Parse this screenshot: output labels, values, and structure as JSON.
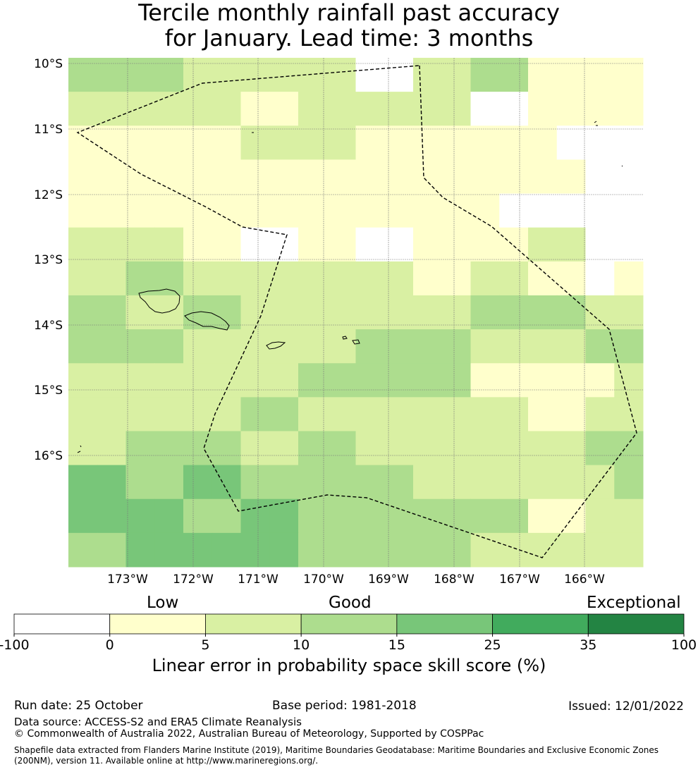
{
  "title": {
    "line1": "Tercile monthly rainfall past accuracy",
    "line2": "for January. Lead time: 3 months"
  },
  "map": {
    "lat_labels": [
      "10°S",
      "11°S",
      "12°S",
      "13°S",
      "14°S",
      "15°S",
      "16°S"
    ],
    "lon_labels": [
      "173°W",
      "172°W",
      "171°W",
      "170°W",
      "169°W",
      "168°W",
      "167°W",
      "166°W"
    ],
    "colors": {
      "none": "#ffffff",
      "c0": "#ffffcc",
      "c1": "#d9f0a3",
      "c2": "#addd8e",
      "c3": "#78c679",
      "c4": "#41ab5d",
      "c5": "#238443"
    },
    "grid": [
      [
        2,
        2,
        2,
        2,
        1,
        1,
        1,
        1,
        1,
        1,
        -1,
        -1,
        1,
        1,
        2,
        2,
        0,
        0,
        0,
        0
      ],
      [
        1,
        1,
        1,
        1,
        1,
        1,
        0,
        0,
        1,
        1,
        1,
        1,
        1,
        1,
        -1,
        -1,
        0,
        0,
        0,
        0
      ],
      [
        0,
        0,
        0,
        0,
        0,
        0,
        1,
        1,
        1,
        1,
        0,
        0,
        0,
        0,
        0,
        0,
        0,
        -1,
        -1,
        -1
      ],
      [
        0,
        0,
        0,
        0,
        0,
        0,
        0,
        0,
        0,
        0,
        0,
        0,
        0,
        0,
        0,
        0,
        0,
        0,
        -1,
        -1
      ],
      [
        0,
        0,
        0,
        0,
        0,
        0,
        0,
        0,
        0,
        0,
        0,
        0,
        0,
        0,
        0,
        -1,
        -1,
        -1,
        -1,
        -1
      ],
      [
        1,
        1,
        1,
        1,
        0,
        0,
        -1,
        -1,
        0,
        0,
        -1,
        -1,
        0,
        0,
        0,
        0,
        1,
        1,
        -1,
        -1
      ],
      [
        1,
        1,
        2,
        2,
        1,
        1,
        1,
        1,
        1,
        1,
        1,
        1,
        0,
        0,
        1,
        1,
        0,
        0,
        -1,
        0
      ],
      [
        2,
        2,
        1,
        1,
        2,
        2,
        1,
        1,
        1,
        1,
        1,
        1,
        1,
        1,
        2,
        2,
        2,
        2,
        1,
        1
      ],
      [
        2,
        2,
        2,
        2,
        1,
        1,
        1,
        1,
        1,
        1,
        2,
        2,
        2,
        2,
        1,
        1,
        1,
        1,
        2,
        2
      ],
      [
        1,
        1,
        1,
        1,
        1,
        1,
        1,
        1,
        2,
        2,
        2,
        2,
        2,
        2,
        0,
        0,
        0,
        0,
        0,
        1
      ],
      [
        1,
        1,
        1,
        1,
        1,
        1,
        2,
        2,
        1,
        1,
        1,
        1,
        1,
        1,
        1,
        1,
        0,
        0,
        1,
        1
      ],
      [
        1,
        1,
        2,
        2,
        2,
        2,
        1,
        1,
        2,
        2,
        1,
        1,
        1,
        1,
        1,
        1,
        1,
        1,
        2,
        2
      ],
      [
        3,
        3,
        2,
        2,
        3,
        3,
        2,
        2,
        2,
        2,
        2,
        2,
        1,
        1,
        1,
        1,
        1,
        1,
        1,
        2
      ],
      [
        3,
        3,
        3,
        3,
        2,
        2,
        3,
        3,
        2,
        2,
        2,
        2,
        2,
        2,
        2,
        2,
        0,
        0,
        1,
        1
      ],
      [
        2,
        2,
        3,
        3,
        3,
        3,
        3,
        3,
        2,
        2,
        2,
        2,
        2,
        2,
        1,
        1,
        1,
        1,
        1,
        1
      ]
    ]
  },
  "colorbar": {
    "category_low": "Low",
    "category_good": "Good",
    "category_exceptional": "Exceptional",
    "ticks": [
      "-100",
      "0",
      "5",
      "10",
      "15",
      "25",
      "35",
      "100"
    ],
    "bin_values": [
      -100,
      0,
      5,
      10,
      15,
      25,
      35,
      100
    ],
    "label": "Linear error in probability space skill score (%)"
  },
  "footer": {
    "run_date": "Run date: 25 October",
    "base_period": "Base period: 1981-2018",
    "issued": "Issued: 12/01/2022",
    "data_source": "Data source: ACCESS-S2 and ERA5 Climate Reanalysis",
    "copyright": "© Commonwealth of Australia 2022, Australian Bureau of Meteorology, Supported by COSPPac",
    "shapefile_note": "Shapefile data extracted from Flanders Marine Institute (2019), Maritime Boundaries Geodatabase: Maritime Boundaries and Exclusive Economic Zones (200NM), version 11. Available online at http://www.marineregions.org/."
  }
}
